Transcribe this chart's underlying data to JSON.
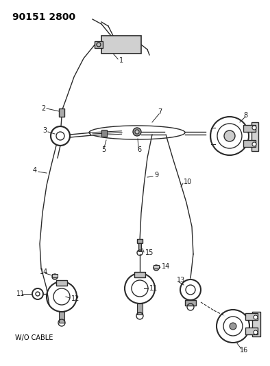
{
  "title": "90151 2800",
  "background_color": "#ffffff",
  "line_color": "#2a2a2a",
  "text_color": "#1a1a1a",
  "title_fontsize": 10,
  "label_fontsize": 7,
  "wo_cable_label": "W/O CABLE"
}
